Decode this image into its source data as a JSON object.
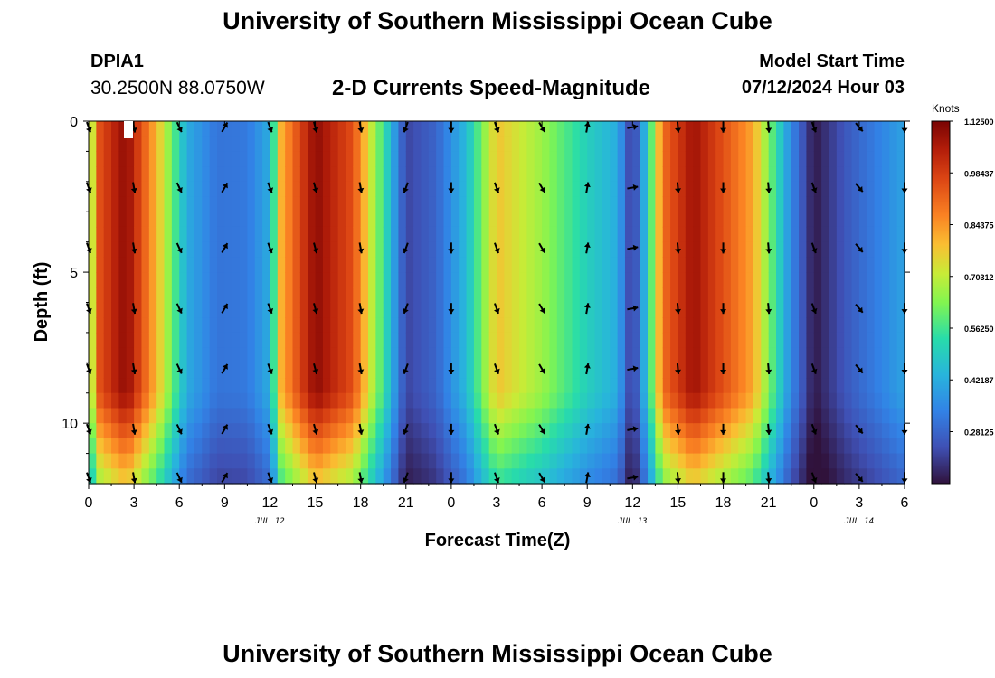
{
  "header": {
    "title": "University of Southern Mississippi Ocean Cube",
    "station": "DPIA1",
    "coords": "30.2500N  88.0750W",
    "subtitle": "2-D Currents Speed-Magnitude",
    "model_start_label": "Model Start Time",
    "model_start_value": "07/12/2024 Hour 03"
  },
  "footer": {
    "title": "University of Southern Mississippi Ocean Cube"
  },
  "chart_data": {
    "type": "heatmap",
    "title": "2-D Currents Speed-Magnitude",
    "xlabel": "Forecast Time(Z)",
    "ylabel": "Depth (ft)",
    "x_range_hours": [
      0,
      54
    ],
    "y_range_ft": [
      0,
      12
    ],
    "x_tick_labels": [
      "0",
      "3",
      "6",
      "9",
      "12",
      "15",
      "18",
      "21",
      "0",
      "3",
      "6",
      "9",
      "12",
      "15",
      "18",
      "21",
      "0",
      "3",
      "6"
    ],
    "y_ticks": [
      0,
      5,
      10
    ],
    "date_labels": [
      {
        "label": "JUL 12",
        "hour": 12
      },
      {
        "label": "JUL 13",
        "hour": 36
      },
      {
        "label": "JUL 14",
        "hour": 51
      }
    ],
    "colorbar": {
      "title": "Knots",
      "min": 0.14,
      "max": 1.125,
      "tick_values": [
        1.125,
        0.98437,
        0.84375,
        0.70312,
        0.5625,
        0.42187,
        0.28125
      ],
      "tick_labels": [
        "1.12500",
        "0.98437",
        "0.84375",
        "0.70312",
        "0.56250",
        "0.42187",
        "0.28125"
      ]
    },
    "speed_profile_knots": [
      {
        "hour": 0,
        "speed": 0.6
      },
      {
        "hour": 0.7,
        "speed": 0.95
      },
      {
        "hour": 2.5,
        "speed": 1.1
      },
      {
        "hour": 4.5,
        "speed": 0.8
      },
      {
        "hour": 6.5,
        "speed": 0.42
      },
      {
        "hour": 8.5,
        "speed": 0.31
      },
      {
        "hour": 10.5,
        "speed": 0.32
      },
      {
        "hour": 12,
        "speed": 0.42
      },
      {
        "hour": 12.7,
        "speed": 0.8
      },
      {
        "hour": 15,
        "speed": 1.1
      },
      {
        "hour": 17.5,
        "speed": 0.95
      },
      {
        "hour": 19.5,
        "speed": 0.55
      },
      {
        "hour": 21,
        "speed": 0.22
      },
      {
        "hour": 23,
        "speed": 0.28
      },
      {
        "hour": 25,
        "speed": 0.45
      },
      {
        "hour": 27,
        "speed": 0.78
      },
      {
        "hour": 30,
        "speed": 0.66
      },
      {
        "hour": 33,
        "speed": 0.5
      },
      {
        "hour": 35,
        "speed": 0.42
      },
      {
        "hour": 36,
        "speed": 0.18
      },
      {
        "hour": 37,
        "speed": 0.5
      },
      {
        "hour": 38,
        "speed": 0.9
      },
      {
        "hour": 40,
        "speed": 1.08
      },
      {
        "hour": 44,
        "speed": 0.82
      },
      {
        "hour": 46.5,
        "speed": 0.35
      },
      {
        "hour": 48,
        "speed": 0.15
      },
      {
        "hour": 50,
        "speed": 0.25
      },
      {
        "hour": 54,
        "speed": 0.4
      }
    ],
    "vectors": {
      "hours": [
        0,
        3,
        6,
        9,
        12,
        15,
        18,
        21,
        24,
        27,
        30,
        33,
        36,
        39,
        42,
        45,
        48,
        51,
        54
      ],
      "depths_ft": [
        0.2,
        2.2,
        4.2,
        6.2,
        8.2,
        10.2,
        11.8
      ],
      "direction_deg": [
        160,
        170,
        155,
        30,
        160,
        165,
        170,
        200,
        180,
        160,
        150,
        10,
        80,
        175,
        180,
        175,
        160,
        140,
        180
      ]
    }
  }
}
